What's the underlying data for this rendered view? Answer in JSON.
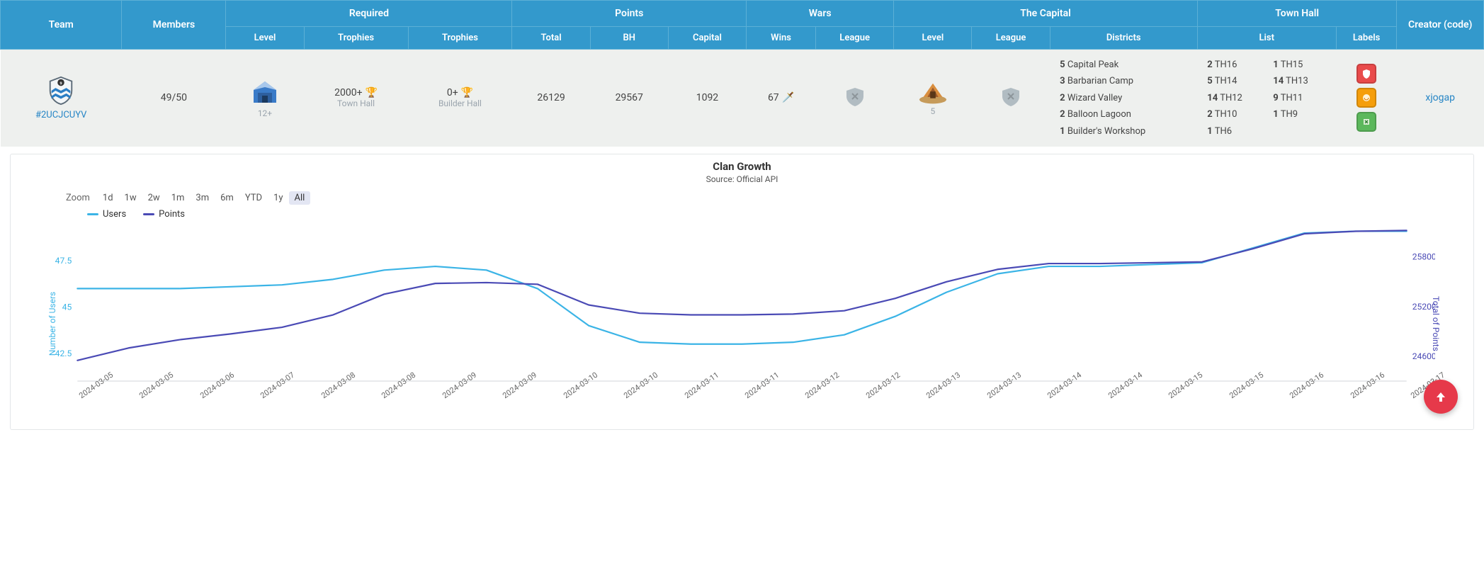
{
  "colors": {
    "header_bg": "#3399cc",
    "row_bg": "#eef0ee",
    "link": "#2585c5",
    "users_line": "#3bb4e6",
    "points_line": "#4a4ab5",
    "fab": "#e6394a"
  },
  "headers": {
    "team": "Team",
    "members": "Members",
    "required": "Required",
    "points": "Points",
    "wars": "Wars",
    "capital": "The Capital",
    "townhall": "Town Hall",
    "creator": "Creator (code)",
    "sub": {
      "level": "Level",
      "trophies": "Trophies",
      "trophies2": "Trophies",
      "total": "Total",
      "bh": "BH",
      "capital": "Capital",
      "wins": "Wins",
      "league": "League",
      "cap_level": "Level",
      "cap_league": "League",
      "districts": "Districts",
      "list": "List",
      "labels": "Labels"
    }
  },
  "row": {
    "team_code": "#2UCJCUYV",
    "members": "49/50",
    "req_level": "12+",
    "req_trophies": "2000+",
    "req_trophies_label": "Town Hall",
    "req_bh_trophies": "0+",
    "req_bh_label": "Builder Hall",
    "pts_total": "26129",
    "pts_bh": "29567",
    "pts_capital": "1092",
    "war_wins": "67",
    "cap_level": "5",
    "districts": [
      {
        "n": "5",
        "name": "Capital Peak"
      },
      {
        "n": "3",
        "name": "Barbarian Camp"
      },
      {
        "n": "2",
        "name": "Wizard Valley"
      },
      {
        "n": "2",
        "name": "Balloon Lagoon"
      },
      {
        "n": "1",
        "name": "Builder's Workshop"
      }
    ],
    "th_list": [
      {
        "n": "2",
        "name": "TH16"
      },
      {
        "n": "1",
        "name": "TH15"
      },
      {
        "n": "5",
        "name": "TH14"
      },
      {
        "n": "14",
        "name": "TH13"
      },
      {
        "n": "14",
        "name": "TH12"
      },
      {
        "n": "9",
        "name": "TH11"
      },
      {
        "n": "2",
        "name": "TH10"
      },
      {
        "n": "1",
        "name": "TH9"
      },
      {
        "n": "1",
        "name": "TH6"
      }
    ],
    "creator": "xjogap"
  },
  "chart": {
    "title": "Clan Growth",
    "subtitle": "Source: Official API",
    "zoom_label": "Zoom",
    "zoom_options": [
      "1d",
      "1w",
      "2w",
      "1m",
      "3m",
      "6m",
      "YTD",
      "1y",
      "All"
    ],
    "zoom_active": "All",
    "legend": [
      {
        "label": "Users",
        "color": "#3bb4e6"
      },
      {
        "label": "Points",
        "color": "#4a4ab5"
      }
    ],
    "y_left": {
      "title": "Number of Users",
      "ticks": [
        "42.5",
        "45",
        "47.5"
      ],
      "min": 41,
      "max": 49.5
    },
    "y_right": {
      "title": "Total of Points",
      "ticks": [
        "24600",
        "25200",
        "25800"
      ],
      "min": 24300,
      "max": 26200
    },
    "x_labels": [
      "2024-03-05",
      "2024-03-05",
      "2024-03-06",
      "2024-03-07",
      "2024-03-08",
      "2024-03-08",
      "2024-03-09",
      "2024-03-09",
      "2024-03-10",
      "2024-03-10",
      "2024-03-11",
      "2024-03-11",
      "2024-03-12",
      "2024-03-12",
      "2024-03-13",
      "2024-03-13",
      "2024-03-14",
      "2024-03-14",
      "2024-03-15",
      "2024-03-15",
      "2024-03-16",
      "2024-03-16",
      "2024-03-17"
    ],
    "users_series": [
      46.0,
      46.0,
      46.0,
      46.1,
      46.2,
      46.5,
      47.0,
      47.2,
      47.0,
      46.0,
      44.0,
      43.1,
      43.0,
      43.0,
      43.1,
      43.5,
      44.5,
      45.8,
      46.8,
      47.2,
      47.2,
      47.3,
      47.4,
      48.2,
      49.0,
      49.1,
      49.1
    ],
    "points_series": [
      24550,
      24700,
      24800,
      24870,
      24950,
      25100,
      25350,
      25480,
      25490,
      25470,
      25220,
      25120,
      25100,
      25100,
      25110,
      25150,
      25300,
      25500,
      25650,
      25720,
      25720,
      25730,
      25740,
      25900,
      26080,
      26110,
      26120
    ]
  }
}
